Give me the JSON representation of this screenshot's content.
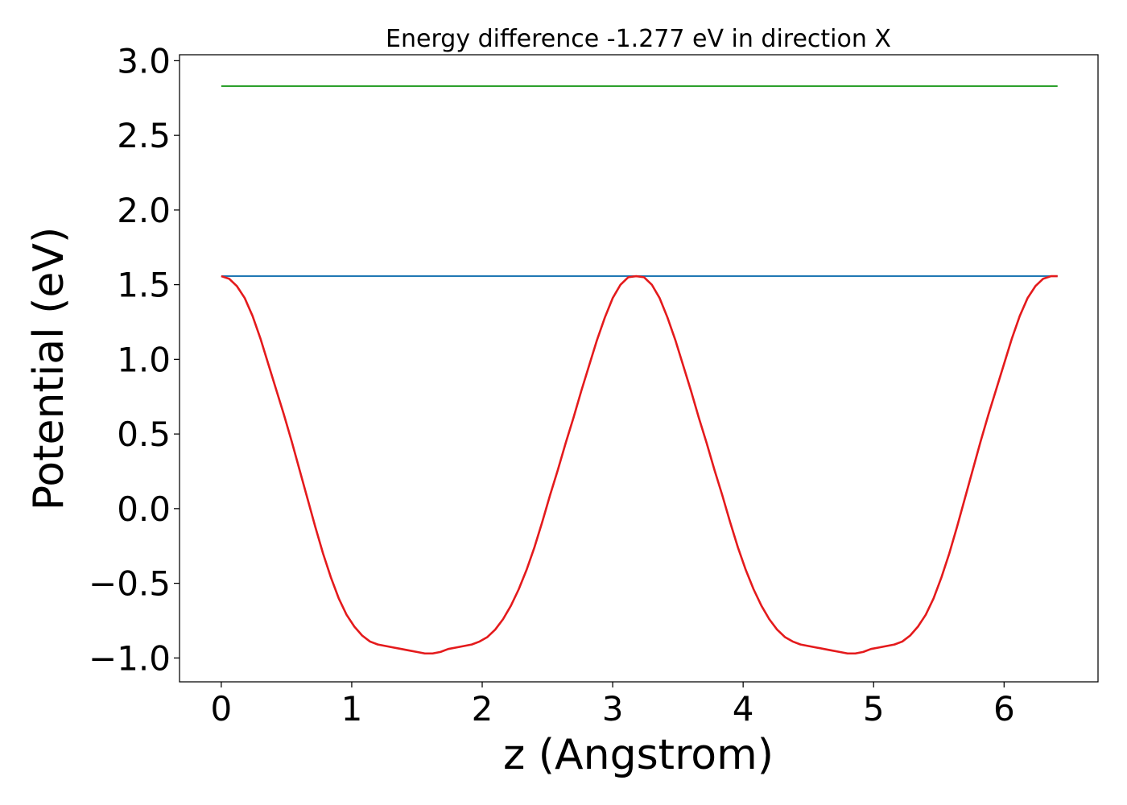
{
  "chart_data": {
    "type": "line",
    "title": "Energy difference -1.277 eV in direction X",
    "xlabel": "z (Angstrom)",
    "ylabel": "Potential (eV)",
    "xlim": [
      -0.32,
      6.72
    ],
    "ylim": [
      -1.16,
      3.04
    ],
    "xticks": [
      0,
      1,
      2,
      3,
      4,
      5,
      6
    ],
    "xtick_labels": [
      "0",
      "1",
      "2",
      "3",
      "4",
      "5",
      "6"
    ],
    "yticks": [
      -1.0,
      -0.5,
      0.0,
      0.5,
      1.0,
      1.5,
      2.0,
      2.5,
      3.0
    ],
    "ytick_labels": [
      "−1.0",
      "−0.5",
      "0.0",
      "0.5",
      "1.0",
      "1.5",
      "2.0",
      "2.5",
      "3.0"
    ],
    "grid": false,
    "legend": null,
    "series": [
      {
        "color": "#2ca02c",
        "kind": "hline",
        "x": [
          0,
          6.41
        ],
        "y": [
          2.83,
          2.83
        ]
      },
      {
        "color": "#1f77b4",
        "kind": "hline",
        "x": [
          0,
          6.41
        ],
        "y": [
          1.557,
          1.557
        ]
      },
      {
        "color": "#e41a1c",
        "kind": "line",
        "x": [
          0.0,
          0.06,
          0.12,
          0.18,
          0.24,
          0.3,
          0.36,
          0.42,
          0.48,
          0.54,
          0.6,
          0.66,
          0.72,
          0.78,
          0.84,
          0.9,
          0.96,
          1.02,
          1.08,
          1.14,
          1.2,
          1.26,
          1.32,
          1.38,
          1.44,
          1.5,
          1.56,
          1.62,
          1.68,
          1.74,
          1.8,
          1.86,
          1.92,
          1.98,
          2.04,
          2.1,
          2.16,
          2.22,
          2.28,
          2.34,
          2.4,
          2.46,
          2.52,
          2.58,
          2.64,
          2.7,
          2.76,
          2.82,
          2.88,
          2.94,
          3.0,
          3.06,
          3.12,
          3.18,
          3.24,
          3.3,
          3.36,
          3.42,
          3.48,
          3.54,
          3.6,
          3.66,
          3.72,
          3.78,
          3.84,
          3.9,
          3.96,
          4.02,
          4.08,
          4.14,
          4.2,
          4.26,
          4.32,
          4.38,
          4.44,
          4.5,
          4.56,
          4.62,
          4.68,
          4.74,
          4.8,
          4.86,
          4.92,
          4.98,
          5.04,
          5.1,
          5.16,
          5.22,
          5.28,
          5.34,
          5.4,
          5.46,
          5.52,
          5.58,
          5.64,
          5.7,
          5.76,
          5.82,
          5.88,
          5.94,
          6.0,
          6.06,
          6.12,
          6.18,
          6.24,
          6.3,
          6.36,
          6.41
        ],
        "y": [
          1.557,
          1.54,
          1.49,
          1.41,
          1.29,
          1.14,
          0.97,
          0.8,
          0.63,
          0.45,
          0.26,
          0.07,
          -0.12,
          -0.3,
          -0.46,
          -0.6,
          -0.71,
          -0.79,
          -0.85,
          -0.89,
          -0.91,
          -0.92,
          -0.93,
          -0.94,
          -0.95,
          -0.96,
          -0.97,
          -0.97,
          -0.96,
          -0.94,
          -0.93,
          -0.92,
          -0.91,
          -0.89,
          -0.86,
          -0.81,
          -0.74,
          -0.65,
          -0.54,
          -0.41,
          -0.26,
          -0.09,
          0.09,
          0.26,
          0.44,
          0.61,
          0.79,
          0.96,
          1.13,
          1.28,
          1.41,
          1.5,
          1.55,
          1.557,
          1.55,
          1.5,
          1.41,
          1.28,
          1.13,
          0.96,
          0.79,
          0.61,
          0.44,
          0.26,
          0.09,
          -0.09,
          -0.26,
          -0.41,
          -0.54,
          -0.65,
          -0.74,
          -0.81,
          -0.86,
          -0.89,
          -0.91,
          -0.92,
          -0.93,
          -0.94,
          -0.95,
          -0.96,
          -0.97,
          -0.97,
          -0.96,
          -0.94,
          -0.93,
          -0.92,
          -0.91,
          -0.89,
          -0.85,
          -0.79,
          -0.71,
          -0.6,
          -0.46,
          -0.3,
          -0.12,
          0.07,
          0.26,
          0.45,
          0.63,
          0.8,
          0.97,
          1.14,
          1.29,
          1.41,
          1.49,
          1.54,
          1.557,
          1.557
        ]
      }
    ]
  }
}
